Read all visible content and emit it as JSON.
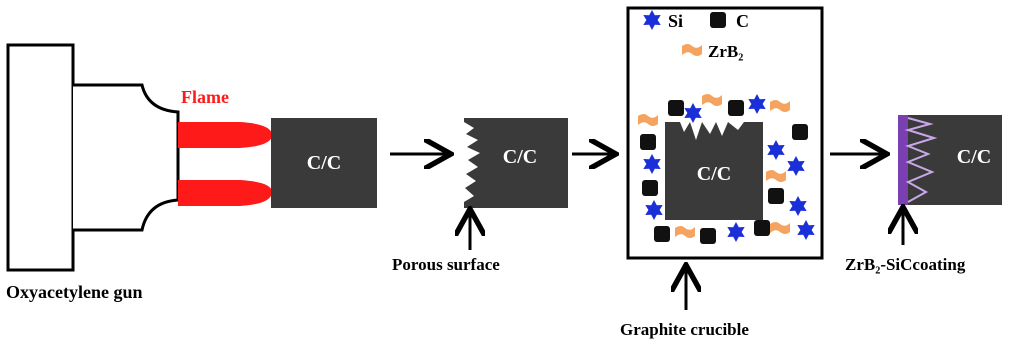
{
  "labels": {
    "flame": "Flame",
    "gun": "Oxyacetylene gun",
    "cc1": "C/C",
    "cc2": "C/C",
    "cc3": "C/C",
    "cc4": "C/C",
    "porous": "Porous surface",
    "crucible": "Graphite crucible",
    "coating": "ZrB₂-SiCcoating"
  },
  "legend": {
    "si": "Si",
    "c": "C",
    "zrb2": "ZrB₂"
  },
  "colors": {
    "flame": "#ff1a1a",
    "block": "#3a3a3a",
    "si": "#1a2fd8",
    "c": "#111111",
    "zrb2": "#f4a460",
    "coating": "#7a3fb0"
  },
  "icons": {
    "si": "blue-star-icon",
    "c": "black-square-icon",
    "zrb2": "orange-flake-icon"
  }
}
